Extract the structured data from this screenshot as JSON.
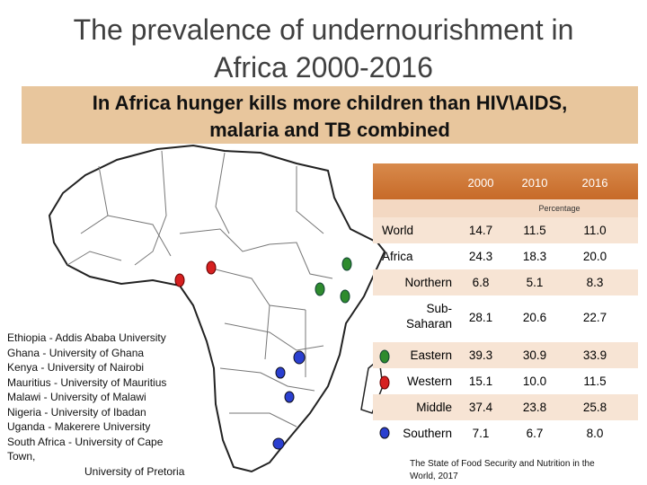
{
  "title": {
    "line1": "The prevalence of undernourishment in",
    "line2": "Africa 2000-2016"
  },
  "banner": {
    "line1": "In Africa hunger kills more children than HIV\\AIDS,",
    "line2": "malaria and TB combined"
  },
  "universities": [
    "Ethiopia - Addis Ababa University",
    "Ghana - University of Ghana",
    "Kenya - University of Nairobi",
    "Mauritius - University of Mauritius",
    "Malawi - University of Malawi",
    "Nigeria - University of Ibadan",
    "Uganda - Makerere University",
    "South Africa - University of Cape",
    "Town,",
    "University of Pretoria"
  ],
  "table": {
    "columns": [
      "2000",
      "2010",
      "2016"
    ],
    "unit": "Percentage",
    "rows": [
      {
        "label": "World",
        "values": [
          "14.7",
          "11.5",
          "11.0"
        ]
      },
      {
        "label": "Africa",
        "values": [
          "24.3",
          "18.3",
          "20.0"
        ]
      },
      {
        "label": "Northern",
        "values": [
          "6.8",
          "5.1",
          "8.3"
        ]
      },
      {
        "label_line1": "Sub-",
        "label_line2": "Saharan",
        "values": [
          "28.1",
          "20.6",
          "22.7"
        ]
      },
      {
        "label": "Eastern",
        "values": [
          "39.3",
          "30.9",
          "33.9"
        ]
      },
      {
        "label": "Western",
        "values": [
          "15.1",
          "10.0",
          "11.5"
        ]
      },
      {
        "label": "Middle",
        "values": [
          "37.4",
          "23.8",
          "25.8"
        ]
      },
      {
        "label": "Southern",
        "values": [
          "7.1",
          "6.7",
          "8.0"
        ]
      }
    ]
  },
  "source": {
    "line1": "The State of Food Security and Nutrition in the",
    "line2": "World, 2017"
  },
  "colors": {
    "banner": "#e8c69d",
    "header": "#c76a28",
    "marker_green": "#2e8b2e",
    "marker_red": "#d62020",
    "marker_blue": "#2a3fd0"
  }
}
